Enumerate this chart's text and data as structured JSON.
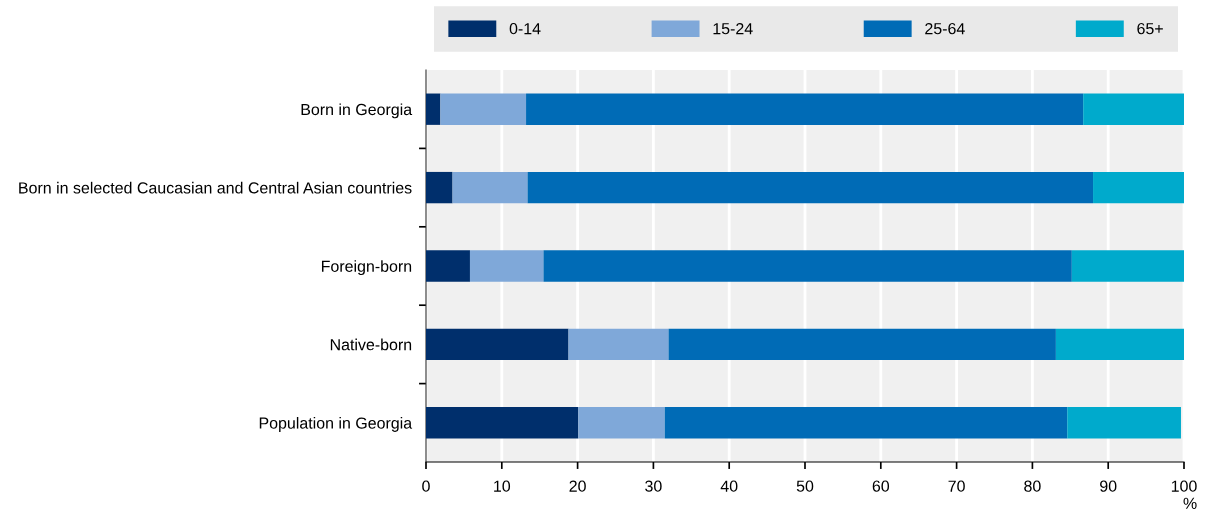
{
  "chart_data": {
    "type": "bar",
    "orientation": "horizontal",
    "stacked": true,
    "categories": [
      "Born in Georgia",
      "Born in selected Caucasian and Central Asian countries",
      "Foreign-born",
      "Native-born",
      "Population in Georgia"
    ],
    "series": [
      {
        "name": "0-14",
        "color": "#002f6c",
        "values": [
          1.9,
          3.5,
          5.8,
          18.8,
          20.1
        ]
      },
      {
        "name": "15-24",
        "color": "#7fa8d9",
        "values": [
          11.3,
          9.9,
          9.7,
          13.2,
          11.4
        ]
      },
      {
        "name": "25-64",
        "color": "#006bb6",
        "values": [
          73.5,
          74.6,
          69.7,
          51.1,
          53.1
        ]
      },
      {
        "name": "65+",
        "color": "#00aacc",
        "values": [
          13.3,
          12.0,
          14.8,
          16.9,
          15.0
        ]
      }
    ],
    "xlabel": "%",
    "xlim": [
      0,
      100
    ],
    "xticks": [
      0,
      10,
      20,
      30,
      40,
      50,
      60,
      70,
      80,
      90,
      100
    ],
    "grid": "x",
    "legend": "top"
  }
}
